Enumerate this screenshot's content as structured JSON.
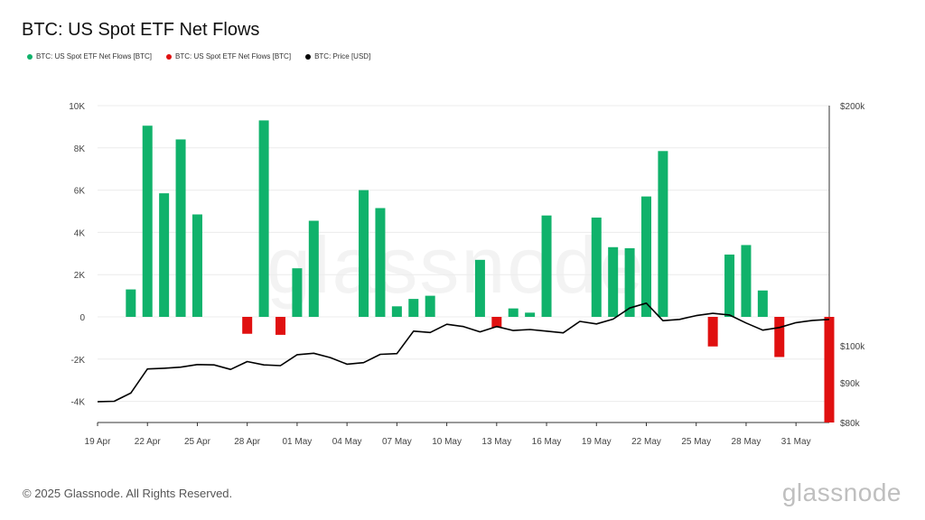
{
  "title": "BTC: US Spot ETF Net Flows",
  "legend": [
    {
      "label": "BTC: US Spot ETF Net Flows [BTC]",
      "color": "#10b26b"
    },
    {
      "label": "BTC: US Spot ETF Net Flows [BTC]",
      "color": "#e01010"
    },
    {
      "label": "BTC: Price [USD]",
      "color": "#000000"
    }
  ],
  "watermark": "glassnode",
  "footer": "© 2025 Glassnode. All Rights Reserved.",
  "brand": "glassnode",
  "colors": {
    "positive": "#10b26b",
    "negative": "#e01010",
    "line": "#000000",
    "grid": "#ececec"
  },
  "chart_data": {
    "type": "bar",
    "title": "BTC: US Spot ETF Net Flows",
    "xlabel": "",
    "ylabel": "",
    "x_ticks": [
      "19 Apr",
      "22 Apr",
      "25 Apr",
      "28 Apr",
      "01 May",
      "04 May",
      "07 May",
      "10 May",
      "13 May",
      "16 May",
      "19 May",
      "22 May",
      "25 May",
      "28 May",
      "31 May"
    ],
    "ylim": [
      -5000,
      10000
    ],
    "y_ticks": [
      {
        "v": 10000,
        "label": "10K"
      },
      {
        "v": 8000,
        "label": "8K"
      },
      {
        "v": 6000,
        "label": "6K"
      },
      {
        "v": 4000,
        "label": "4K"
      },
      {
        "v": 2000,
        "label": "2K"
      },
      {
        "v": 0,
        "label": "0"
      },
      {
        "v": -2000,
        "label": "-2K"
      },
      {
        "v": -4000,
        "label": "-4K"
      }
    ],
    "y2_ticks": [
      {
        "v": 200000,
        "label": "$200k"
      },
      {
        "v": 100000,
        "label": "$100k"
      },
      {
        "v": 90000,
        "label": "$90k"
      },
      {
        "v": 80000,
        "label": "$80k"
      }
    ],
    "series": [
      {
        "name": "BTC: US Spot ETF Net Flows [BTC]",
        "days": [
          0,
          1,
          2,
          3,
          4,
          5,
          6,
          7,
          8,
          9,
          10,
          11,
          12,
          13,
          14,
          15,
          16,
          17,
          18,
          19,
          20,
          21,
          22,
          23,
          24,
          25,
          26,
          27,
          28,
          29,
          30,
          31,
          32,
          33,
          34,
          35,
          36,
          37,
          38,
          39,
          40,
          41,
          42,
          43,
          44
        ],
        "values": [
          0,
          0,
          1300,
          9050,
          5850,
          8400,
          4850,
          0,
          0,
          -800,
          9300,
          -850,
          2300,
          4550,
          0,
          0,
          6000,
          5150,
          500,
          850,
          1000,
          0,
          0,
          2700,
          -500,
          400,
          200,
          4800,
          0,
          0,
          4700,
          3300,
          3250,
          5700,
          7850,
          0,
          0,
          -1400,
          2950,
          3400,
          1250,
          -1900,
          0,
          0,
          -5000
        ]
      },
      {
        "name": "BTC: Price [USD]",
        "days": [
          0,
          1,
          2,
          3,
          4,
          5,
          6,
          7,
          8,
          9,
          10,
          11,
          12,
          13,
          14,
          15,
          16,
          17,
          18,
          19,
          20,
          21,
          22,
          23,
          24,
          25,
          26,
          27,
          28,
          29,
          30,
          31,
          32,
          33,
          34,
          35,
          36,
          37,
          38,
          39,
          40,
          41,
          42,
          43,
          44
        ],
        "values": [
          85100,
          85200,
          87300,
          93600,
          93800,
          94100,
          94800,
          94700,
          93500,
          95600,
          94700,
          94500,
          97500,
          97900,
          96700,
          94900,
          95300,
          97600,
          97800,
          104300,
          103900,
          106400,
          105700,
          104100,
          105700,
          104500,
          104800,
          104300,
          103800,
          107300,
          106500,
          108000,
          111500,
          113100,
          107500,
          107900,
          109100,
          109800,
          109300,
          106800,
          104600,
          105400,
          106900,
          107600,
          107900
        ]
      }
    ]
  }
}
